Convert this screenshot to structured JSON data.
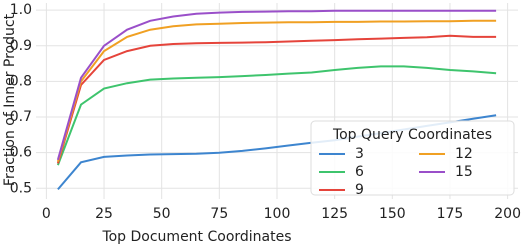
{
  "chart_data": {
    "type": "line",
    "xlabel": "Top Document Coordinates",
    "ylabel": "Fraction of Inner Product",
    "x": [
      5,
      15,
      25,
      35,
      45,
      55,
      65,
      75,
      85,
      95,
      105,
      115,
      125,
      135,
      145,
      155,
      165,
      175,
      185,
      195
    ],
    "series": [
      {
        "name": "3",
        "color": "#3d85cf",
        "values": [
          0.497,
          0.573,
          0.588,
          0.592,
          0.595,
          0.596,
          0.597,
          0.6,
          0.605,
          0.612,
          0.62,
          0.628,
          0.635,
          0.645,
          0.655,
          0.665,
          0.675,
          0.685,
          0.695,
          0.705
        ]
      },
      {
        "name": "6",
        "color": "#3ec46d",
        "values": [
          0.565,
          0.735,
          0.78,
          0.795,
          0.805,
          0.808,
          0.81,
          0.812,
          0.815,
          0.818,
          0.822,
          0.825,
          0.832,
          0.838,
          0.842,
          0.842,
          0.838,
          0.832,
          0.828,
          0.823
        ]
      },
      {
        "name": "9",
        "color": "#e5443b",
        "values": [
          0.57,
          0.79,
          0.86,
          0.885,
          0.9,
          0.905,
          0.907,
          0.908,
          0.909,
          0.91,
          0.912,
          0.914,
          0.916,
          0.918,
          0.92,
          0.922,
          0.924,
          0.928,
          0.925,
          0.925
        ]
      },
      {
        "name": "12",
        "color": "#f0a023",
        "values": [
          0.575,
          0.8,
          0.885,
          0.925,
          0.945,
          0.955,
          0.96,
          0.962,
          0.964,
          0.965,
          0.966,
          0.966,
          0.967,
          0.967,
          0.968,
          0.968,
          0.969,
          0.969,
          0.97,
          0.97
        ]
      },
      {
        "name": "15",
        "color": "#9a4fc9",
        "values": [
          0.58,
          0.81,
          0.9,
          0.945,
          0.97,
          0.982,
          0.99,
          0.993,
          0.995,
          0.996,
          0.997,
          0.997,
          0.998,
          0.998,
          0.998,
          0.998,
          0.998,
          0.998,
          0.998,
          0.998
        ]
      }
    ],
    "xlim": [
      -4.5,
      204.5
    ],
    "xticks": [
      0,
      25,
      50,
      75,
      100,
      125,
      150,
      175,
      200
    ],
    "ylim": [
      0.47,
      1.02
    ],
    "yticks": [
      0.5,
      0.6,
      0.7,
      0.8,
      0.9,
      {
        "value": 1,
        "label": "1.0"
      }
    ],
    "grid": true,
    "legend_title": "Top Query Coordinates",
    "legend_loc": "lower right"
  }
}
